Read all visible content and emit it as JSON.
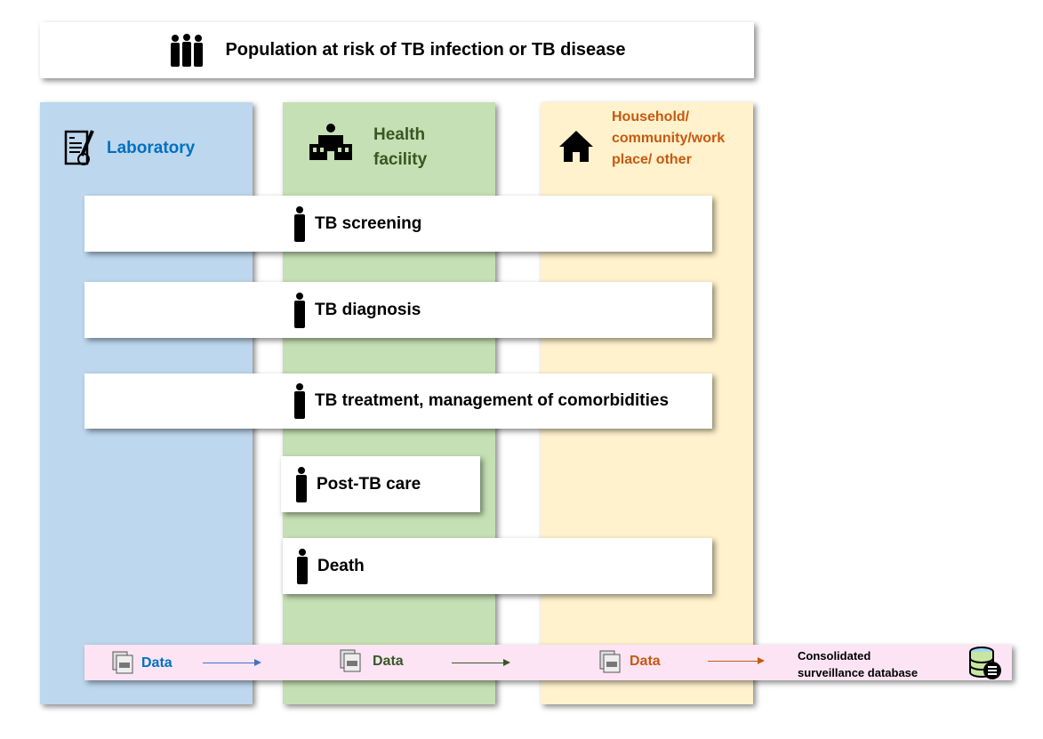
{
  "top": {
    "title": "Population at risk of TB infection or TB disease",
    "icon": "group-of-people-icon"
  },
  "columns": [
    {
      "label": "Laboratory",
      "color": "#BDD7EE",
      "text_color": "#0070C0",
      "icon": "lab-report-icon"
    },
    {
      "label": "Health facility",
      "color": "#C5E0B4",
      "text_color": "#385723",
      "icon": "hospital-icon"
    },
    {
      "label": "Household/ community/work place/ other",
      "color": "#FFF2CC",
      "text_color": "#C55A11",
      "icon": "house-icon"
    }
  ],
  "steps": [
    "TB screening",
    "TB diagnosis",
    "TB treatment, management of comorbidities",
    "Post-TB care",
    "Death"
  ],
  "data_flow": {
    "background": "#FCE4F4",
    "items": [
      {
        "label": "Data",
        "color": "#0070C0"
      },
      {
        "label": "Data",
        "color": "#385723"
      },
      {
        "label": "Data",
        "color": "#C55A11"
      }
    ],
    "arrow_colors": [
      "#4472C4",
      "#385723",
      "#C55A11"
    ],
    "destination": "Consolidated surveillance database"
  }
}
